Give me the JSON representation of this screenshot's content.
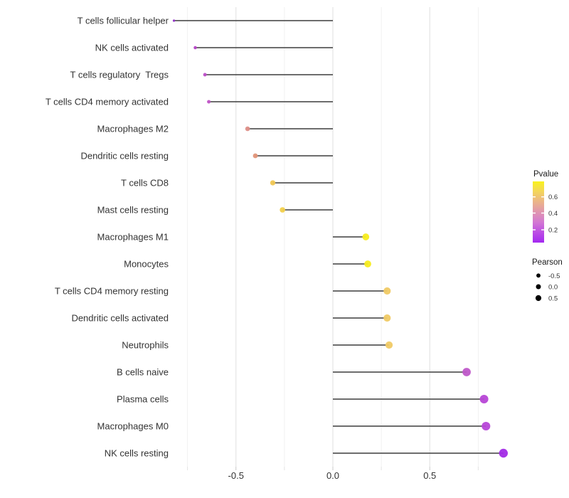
{
  "chart_data": {
    "type": "scatter",
    "subtype": "lollipop",
    "orientation": "horizontal",
    "title": "",
    "xlabel": "",
    "ylabel": "",
    "xlim": [
      -0.94,
      0.97
    ],
    "x_tick_labels": [
      "-0.5",
      "0.0",
      "0.5"
    ],
    "x_ticks_major": [
      -0.5,
      0.0,
      0.5
    ],
    "x_ticks_minor": [
      -0.75,
      -0.25,
      0.25,
      0.75
    ],
    "grid": true,
    "baseline_x": 0.0,
    "legend_position": "right",
    "points": [
      {
        "label": "T cells follicular helper",
        "pearson": -0.82,
        "pvalue_approx": 0.05,
        "color": "#9232C8"
      },
      {
        "label": "NK cells activated",
        "pearson": -0.71,
        "pvalue_approx": 0.15,
        "color": "#B544C6"
      },
      {
        "label": "T cells regulatory  Tregs",
        "pearson": -0.66,
        "pvalue_approx": 0.18,
        "color": "#BC4EC7"
      },
      {
        "label": "T cells CD4 memory activated",
        "pearson": -0.64,
        "pvalue_approx": 0.2,
        "color": "#C054C6"
      },
      {
        "label": "Macrophages M2",
        "pearson": -0.44,
        "pvalue_approx": 0.42,
        "color": "#DD8E87"
      },
      {
        "label": "Dendritic cells resting",
        "pearson": -0.4,
        "pvalue_approx": 0.45,
        "color": "#E29478"
      },
      {
        "label": "T cells CD8",
        "pearson": -0.31,
        "pvalue_approx": 0.55,
        "color": "#F0C753"
      },
      {
        "label": "Mast cells resting",
        "pearson": -0.26,
        "pvalue_approx": 0.58,
        "color": "#F2D04B"
      },
      {
        "label": "Macrophages M1",
        "pearson": 0.17,
        "pvalue_approx": 0.72,
        "color": "#F7EC1D"
      },
      {
        "label": "Monocytes",
        "pearson": 0.18,
        "pvalue_approx": 0.72,
        "color": "#F7EC1D"
      },
      {
        "label": "T cells CD4 memory resting",
        "pearson": 0.28,
        "pvalue_approx": 0.58,
        "color": "#F0CA65"
      },
      {
        "label": "Dendritic cells activated",
        "pearson": 0.28,
        "pvalue_approx": 0.58,
        "color": "#F0CA65"
      },
      {
        "label": "Neutrophils",
        "pearson": 0.29,
        "pvalue_approx": 0.57,
        "color": "#F0CA65"
      },
      {
        "label": "B cells naive",
        "pearson": 0.69,
        "pvalue_approx": 0.2,
        "color": "#BF58C9"
      },
      {
        "label": "Plasma cells",
        "pearson": 0.78,
        "pvalue_approx": 0.13,
        "color": "#B746D6"
      },
      {
        "label": "Macrophages M0",
        "pearson": 0.79,
        "pvalue_approx": 0.12,
        "color": "#B747D8"
      },
      {
        "label": "NK cells resting",
        "pearson": 0.88,
        "pvalue_approx": 0.04,
        "color": "#A22BE6"
      }
    ],
    "legend_pvalue": {
      "title": "Pvalue",
      "tick_labels": [
        "0.6",
        "0.4",
        "0.2"
      ],
      "tick_values": [
        0.6,
        0.4,
        0.2
      ],
      "gradient_top_to_bottom": [
        "#F9F21C",
        "#F3D55C",
        "#EBB489",
        "#E095B0",
        "#D378D2",
        "#BC4DE4",
        "#A328F0"
      ]
    },
    "legend_pearson": {
      "title": "Pearson",
      "items": [
        {
          "label": "-0.5",
          "value": -0.5
        },
        {
          "label": "0.0",
          "value": 0.0
        },
        {
          "label": "0.5",
          "value": 0.5
        }
      ],
      "dot_color": "#000000"
    }
  },
  "colors": {
    "background": "#FFFFFF",
    "stem": "#3D3D3D",
    "grid_major": "#E2E2E2",
    "grid_minor": "#EFEFEF",
    "tick_major": "#C9C9C9",
    "tick_minor": "#E3E3E3",
    "axis_text": "#333333",
    "legend_title_text": "#1A1A1A",
    "legend_label_text": "#333333"
  }
}
